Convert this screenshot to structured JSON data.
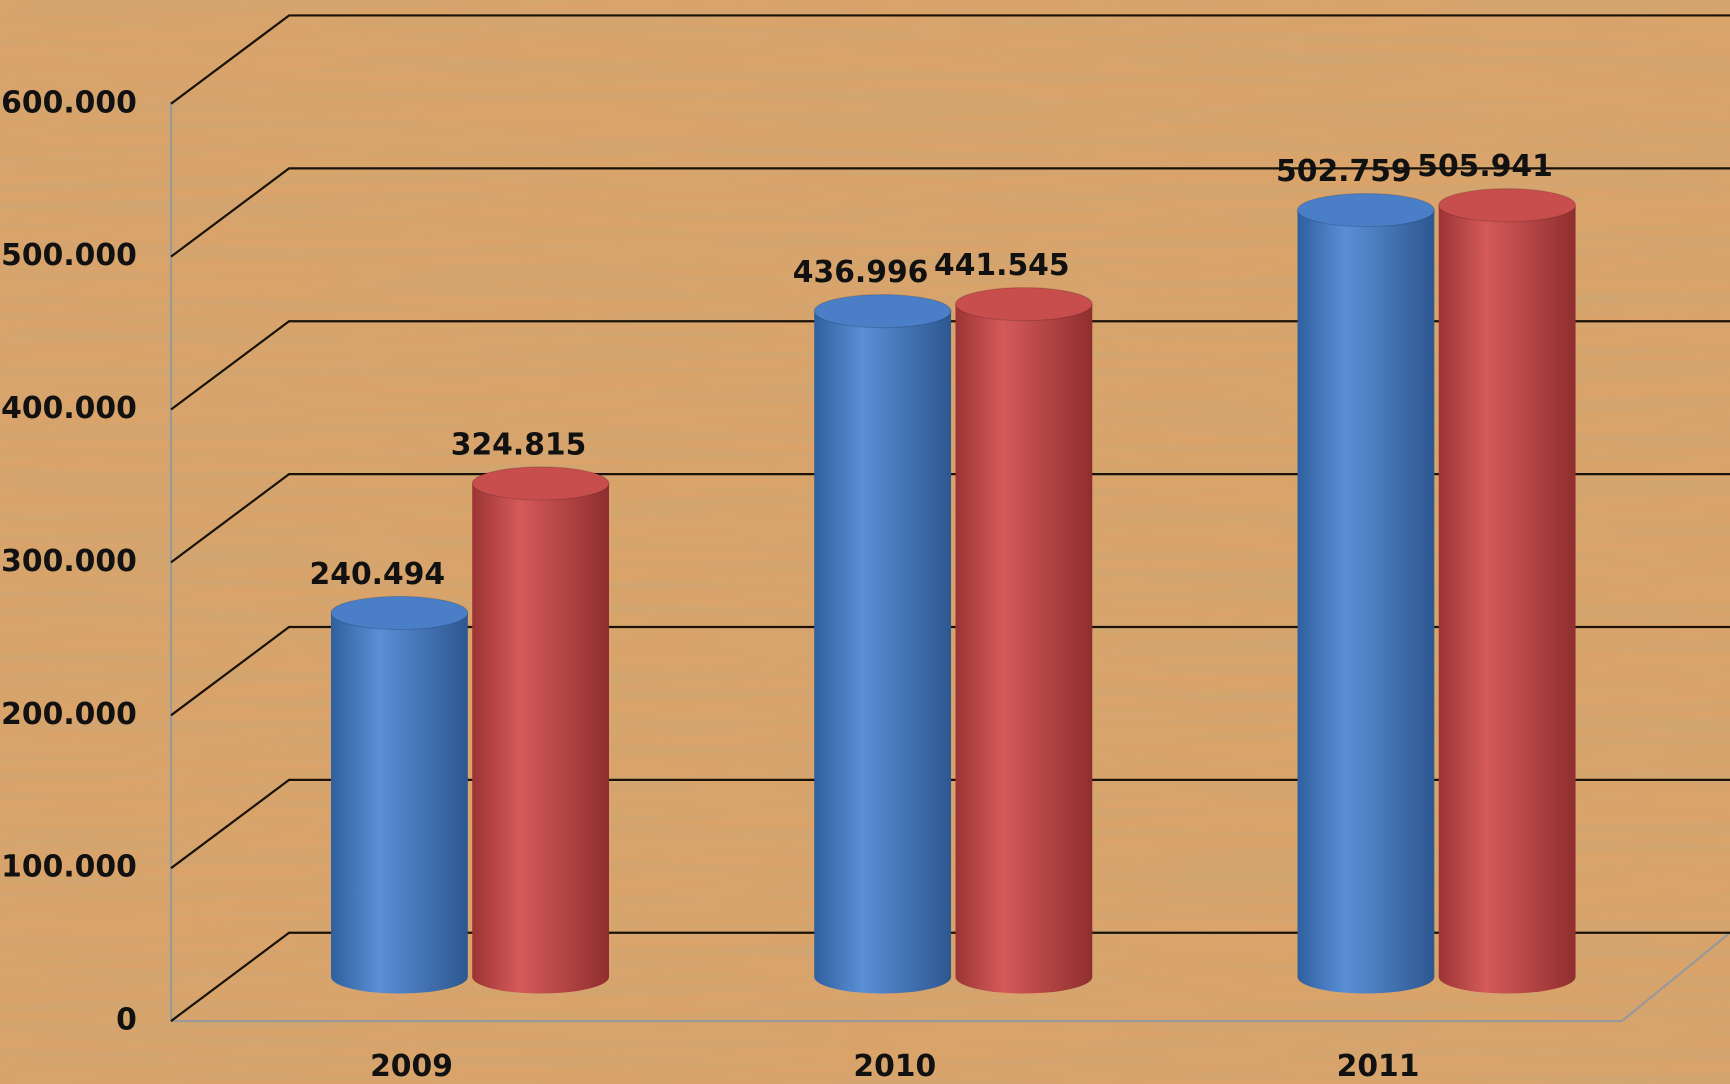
{
  "chart_data": {
    "type": "bar3d",
    "categories": [
      "2009",
      "2010",
      "2011"
    ],
    "series": [
      {
        "color": "#4a7fc8",
        "values": [
          240494,
          436996,
          502759
        ],
        "value_labels": [
          "240.494",
          "436.996",
          "502.759"
        ]
      },
      {
        "color": "#c84e4e",
        "values": [
          324815,
          441545,
          505941
        ],
        "value_labels": [
          "324.815",
          "441.545",
          "505.941"
        ]
      }
    ],
    "ylim": [
      0,
      600000
    ],
    "yticks": [
      0,
      {
        "value": 100000,
        "label": "100.000"
      },
      {
        "value": 200000,
        "label": "200.000"
      },
      {
        "value": 300000,
        "label": "300.000"
      },
      {
        "value": 400000,
        "label": "400.000"
      },
      {
        "value": 500000,
        "label": "500.000"
      },
      {
        "value": 600000,
        "label": "600.000"
      }
    ],
    "grid": true
  }
}
